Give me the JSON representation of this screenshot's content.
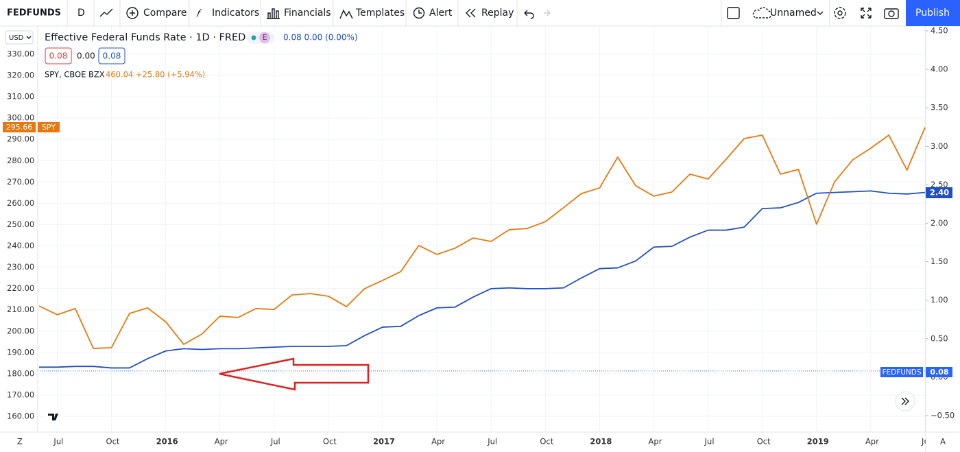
{
  "toolbar": {
    "symbol": "FEDFUNDS",
    "interval": "D",
    "compare": "Compare",
    "indicators": "Indicators",
    "financials": "Financials",
    "templates": "Templates",
    "alert": "Alert",
    "replay": "Replay",
    "layout_name": "Unnamed",
    "publish": "Publish"
  },
  "legend": {
    "primary_badge": "E",
    "primary_values": "0.08 0.00 (0.00%)",
    "box_1": "0.08",
    "box_2": "0.00",
    "box_3": "0.08",
    "secondary_values": "460.04 +25.80 (+5.94%)"
  },
  "scale_labels": {
    "currency": "USD",
    "spy_price": "295.66",
    "spy_name": "SPY",
    "fed_price": "2.40",
    "fed_line_name": "FEDFUNDS",
    "fed_line_value": "0.08",
    "corner_left": "Z",
    "corner_right": "A"
  },
  "chart_data": {
    "type": "line",
    "x": [
      "2015-06",
      "2015-07",
      "2015-08",
      "2015-09",
      "2015-10",
      "2015-11",
      "2015-12",
      "2016-01",
      "2016-02",
      "2016-03",
      "2016-04",
      "2016-05",
      "2016-06",
      "2016-07",
      "2016-08",
      "2016-09",
      "2016-10",
      "2016-11",
      "2016-12",
      "2017-01",
      "2017-02",
      "2017-03",
      "2017-04",
      "2017-05",
      "2017-06",
      "2017-07",
      "2017-08",
      "2017-09",
      "2017-10",
      "2017-11",
      "2017-12",
      "2018-01",
      "2018-02",
      "2018-03",
      "2018-04",
      "2018-05",
      "2018-06",
      "2018-07",
      "2018-08",
      "2018-09",
      "2018-10",
      "2018-11",
      "2018-12",
      "2019-01",
      "2019-02",
      "2019-03",
      "2019-04",
      "2019-05",
      "2019-06",
      "2019-07"
    ],
    "series": [
      {
        "name": "Effective Federal Funds Rate · 1D · FRED",
        "color": "#1f4fc4",
        "axis": "y2",
        "values": [
          0.13,
          0.13,
          0.14,
          0.14,
          0.12,
          0.12,
          0.24,
          0.34,
          0.37,
          0.36,
          0.37,
          0.37,
          0.38,
          0.39,
          0.4,
          0.4,
          0.4,
          0.41,
          0.54,
          0.65,
          0.66,
          0.8,
          0.9,
          0.91,
          1.04,
          1.15,
          1.16,
          1.15,
          1.15,
          1.16,
          1.29,
          1.41,
          1.42,
          1.51,
          1.69,
          1.7,
          1.82,
          1.91,
          1.91,
          1.95,
          2.19,
          2.2,
          2.27,
          2.39,
          2.4,
          2.41,
          2.42,
          2.39,
          2.38,
          2.4
        ]
      },
      {
        "name": "SPY, CBOE BZX",
        "color": "#e8780e",
        "axis": "y",
        "values": [
          211.8,
          207.7,
          210.6,
          191.9,
          192.2,
          208.3,
          210.9,
          204.4,
          193.8,
          198.6,
          207,
          206.4,
          210.6,
          210.2,
          217,
          217.6,
          216.4,
          211.5,
          219.9,
          223.8,
          227.9,
          240.2,
          236,
          238.9,
          243.7,
          242.1,
          247.6,
          248.2,
          251.4,
          257.9,
          264.6,
          267.2,
          281.7,
          268.2,
          263.4,
          265.3,
          273.7,
          271.4,
          280.7,
          290.4,
          292,
          273.7,
          275.9,
          250.2,
          270.1,
          280.4,
          285.9,
          292,
          275.6,
          295.66
        ]
      }
    ],
    "reference_line": {
      "axis": "y2",
      "value": 0.08
    },
    "xlim": [
      "2015-06",
      "2019-07"
    ],
    "xticks": [
      {
        "value": "2015-07",
        "label": "Jul"
      },
      {
        "value": "2015-10",
        "label": "Oct"
      },
      {
        "value": "2016-01",
        "label": "2016"
      },
      {
        "value": "2016-04",
        "label": "Apr"
      },
      {
        "value": "2016-07",
        "label": "Jul"
      },
      {
        "value": "2016-10",
        "label": "Oct"
      },
      {
        "value": "2017-01",
        "label": "2017"
      },
      {
        "value": "2017-04",
        "label": "Apr"
      },
      {
        "value": "2017-07",
        "label": "Jul"
      },
      {
        "value": "2017-10",
        "label": "Oct"
      },
      {
        "value": "2018-01",
        "label": "2018"
      },
      {
        "value": "2018-04",
        "label": "Apr"
      },
      {
        "value": "2018-07",
        "label": "Jul"
      },
      {
        "value": "2018-10",
        "label": "Oct"
      },
      {
        "value": "2019-01",
        "label": "2019"
      },
      {
        "value": "2019-04",
        "label": "Apr"
      },
      {
        "value": "2019-07",
        "label": "Jul"
      }
    ],
    "ylim": [
      152.6,
      343.2
    ],
    "yticks": [
      {
        "value": 160,
        "label": "160.00"
      },
      {
        "value": 170,
        "label": "170.00"
      },
      {
        "value": 180,
        "label": "180.00"
      },
      {
        "value": 190,
        "label": "190.00"
      },
      {
        "value": 200,
        "label": "200.00"
      },
      {
        "value": 210,
        "label": "210.00"
      },
      {
        "value": 220,
        "label": "220.00"
      },
      {
        "value": 230,
        "label": "230.00"
      },
      {
        "value": 240,
        "label": "240.00"
      },
      {
        "value": 250,
        "label": "250.00"
      },
      {
        "value": 260,
        "label": "260.00"
      },
      {
        "value": 270,
        "label": "270.00"
      },
      {
        "value": 280,
        "label": "280.00"
      },
      {
        "value": 290,
        "label": "290.00"
      },
      {
        "value": 300,
        "label": "300.00"
      },
      {
        "value": 310,
        "label": "310.00"
      },
      {
        "value": 320,
        "label": "320.00"
      },
      {
        "value": 330,
        "label": "330.00"
      }
    ],
    "y2lim": [
      -0.714,
      4.562
    ],
    "y2ticks": [
      {
        "value": -0.5,
        "label": "−0.50"
      },
      {
        "value": 0,
        "label": "0.00"
      },
      {
        "value": 0.5,
        "label": "0.50"
      },
      {
        "value": 1,
        "label": "1.00"
      },
      {
        "value": 1.5,
        "label": "1.50"
      },
      {
        "value": 2,
        "label": "2.00"
      },
      {
        "value": 2.5,
        "label": "2.50"
      },
      {
        "value": 3,
        "label": "3.00"
      },
      {
        "value": 3.5,
        "label": "3.50"
      },
      {
        "value": 4,
        "label": "4.00"
      },
      {
        "value": 4.5,
        "label": "4.50"
      }
    ],
    "grid": true
  }
}
